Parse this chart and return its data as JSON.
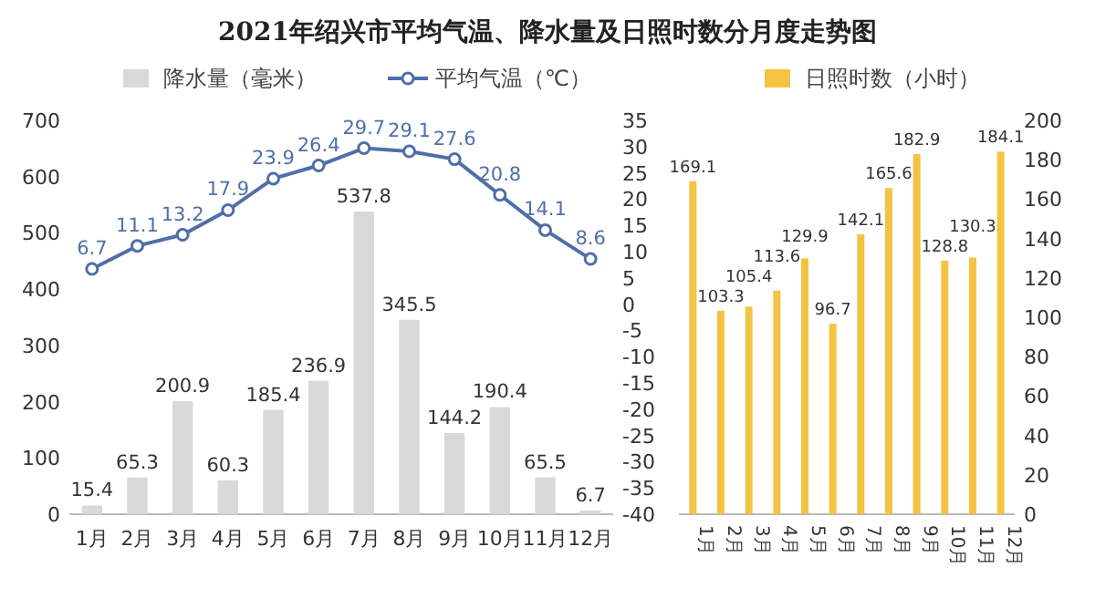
{
  "chart_data": [
    {
      "type": "bar",
      "title": "2021年绍兴市平均气温、降水量及日照时数分月度走势图",
      "categories": [
        "1月",
        "2月",
        "3月",
        "4月",
        "5月",
        "6月",
        "7月",
        "8月",
        "9月",
        "10月",
        "11月",
        "12月"
      ],
      "series": [
        {
          "name": "降水量（毫米）",
          "color": "#d9d9d9",
          "values": [
            15.4,
            65.3,
            200.9,
            60.3,
            185.4,
            236.9,
            537.8,
            345.5,
            144.2,
            190.4,
            65.5,
            6.7
          ]
        },
        {
          "name": "平均气温（℃）",
          "type": "line",
          "axis": "y2",
          "color": "#4f6fa8",
          "values": [
            6.7,
            11.1,
            13.2,
            17.9,
            23.9,
            26.4,
            29.7,
            29.1,
            27.6,
            20.8,
            14.1,
            8.6
          ]
        }
      ],
      "ylim": [
        0,
        700
      ],
      "yticks": [
        0,
        100,
        200,
        300,
        400,
        500,
        600,
        700
      ],
      "y2lim": [
        -40,
        35
      ],
      "y2ticks": [
        -40,
        -35,
        -30,
        -25,
        -20,
        -15,
        -10,
        -5,
        0,
        5,
        10,
        15,
        20,
        25,
        30,
        35
      ],
      "data_labels": true,
      "marker": "circle",
      "legend": "top"
    },
    {
      "type": "bar",
      "categories": [
        "1月",
        "2月",
        "3月",
        "4月",
        "5月",
        "6月",
        "7月",
        "8月",
        "9月",
        "10月",
        "11月",
        "12月"
      ],
      "series": [
        {
          "name": "日照时数（小时）",
          "color": "#f5c342",
          "values": [
            169.1,
            103.3,
            105.4,
            113.6,
            129.9,
            96.7,
            142.1,
            165.6,
            182.9,
            128.8,
            130.3,
            184.1
          ]
        }
      ],
      "ylim": [
        0,
        200
      ],
      "yticks": [
        0,
        20,
        40,
        60,
        80,
        100,
        120,
        140,
        160,
        180,
        200
      ],
      "data_labels": true,
      "legend": "top"
    }
  ]
}
